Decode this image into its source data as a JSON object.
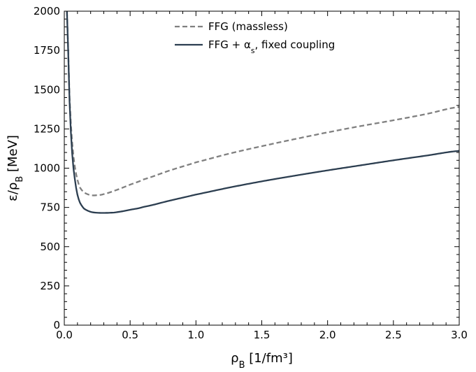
{
  "chart_data": {
    "type": "line",
    "xlabel": "ρ_B [1/fm³]",
    "ylabel": "ε/ρ_B [MeV]",
    "xlim": [
      0.0,
      3.0
    ],
    "ylim": [
      0,
      2000
    ],
    "xticks": [
      "0.0",
      "0.5",
      "1.0",
      "1.5",
      "2.0",
      "2.5",
      "3.0"
    ],
    "yticks": [
      "0",
      "250",
      "500",
      "750",
      "1000",
      "1250",
      "1500",
      "1750",
      "2000"
    ],
    "grid": false,
    "legend_position": "top-center",
    "series": [
      {
        "name": "FFG (massless)",
        "style": "dashed",
        "color": "#808080",
        "x": [
          0.02,
          0.04,
          0.06,
          0.08,
          0.1,
          0.12,
          0.15,
          0.2,
          0.25,
          0.3,
          0.4,
          0.5,
          0.6,
          0.8,
          1.0,
          1.25,
          1.5,
          1.75,
          2.0,
          2.25,
          2.5,
          2.75,
          3.0
        ],
        "y": [
          2000,
          1450,
          1160,
          1010,
          925,
          875,
          845,
          828,
          828,
          835,
          862,
          895,
          928,
          985,
          1037,
          1092,
          1140,
          1185,
          1228,
          1268,
          1305,
          1345,
          1390
        ]
      },
      {
        "name": "FFG + α_s, fixed coupling",
        "style": "solid",
        "color": "#2c3e50",
        "x": [
          0.02,
          0.04,
          0.06,
          0.08,
          0.1,
          0.12,
          0.15,
          0.2,
          0.25,
          0.3,
          0.35,
          0.4,
          0.5,
          0.6,
          0.8,
          1.0,
          1.25,
          1.5,
          1.75,
          2.0,
          2.25,
          2.5,
          2.75,
          3.0
        ],
        "y": [
          2000,
          1420,
          1090,
          930,
          830,
          778,
          742,
          722,
          716,
          715,
          716,
          720,
          735,
          753,
          793,
          832,
          876,
          916,
          952,
          986,
          1018,
          1050,
          1080,
          1110
        ]
      }
    ]
  }
}
